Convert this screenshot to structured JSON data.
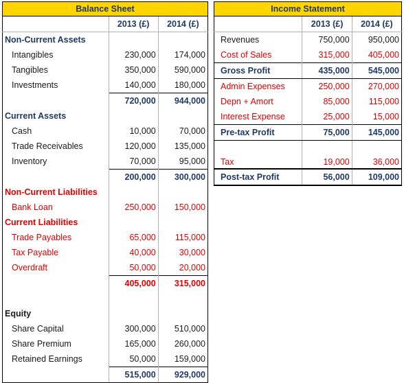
{
  "balance_sheet": {
    "title": "Balance Sheet",
    "years": [
      "2013 (£)",
      "2014 (£)"
    ],
    "rows": [
      {
        "label": "Non-Current Assets",
        "type": "header",
        "v1": "",
        "v2": ""
      },
      {
        "label": "Intangibles",
        "type": "item",
        "v1": "230,000",
        "v2": "174,000"
      },
      {
        "label": "Tangibles",
        "type": "item",
        "v1": "350,000",
        "v2": "590,000"
      },
      {
        "label": "Investments",
        "type": "item",
        "v1": "140,000",
        "v2": "180,000"
      },
      {
        "label": "",
        "type": "total",
        "v1": "720,000",
        "v2": "944,000"
      },
      {
        "label": "Current Assets",
        "type": "header",
        "v1": "",
        "v2": ""
      },
      {
        "label": "Cash",
        "type": "item",
        "v1": "10,000",
        "v2": "70,000"
      },
      {
        "label": "Trade Receivables",
        "type": "item",
        "v1": "120,000",
        "v2": "135,000"
      },
      {
        "label": "Inventory",
        "type": "item",
        "v1": "70,000",
        "v2": "95,000"
      },
      {
        "label": "",
        "type": "total",
        "v1": "200,000",
        "v2": "300,000"
      },
      {
        "label": "Non-Current Liabilities",
        "type": "header-red",
        "v1": "",
        "v2": ""
      },
      {
        "label": "Bank Loan",
        "type": "item-red",
        "v1": "250,000",
        "v2": "150,000"
      },
      {
        "label": "Current Liabilities",
        "type": "header-red",
        "v1": "",
        "v2": ""
      },
      {
        "label": "Trade Payables",
        "type": "item-red",
        "v1": "65,000",
        "v2": "115,000"
      },
      {
        "label": "Tax Payable",
        "type": "item-red",
        "v1": "40,000",
        "v2": "30,000"
      },
      {
        "label": "Overdraft",
        "type": "item-red",
        "v1": "50,000",
        "v2": "20,000"
      },
      {
        "label": "",
        "type": "total-red",
        "v1": "405,000",
        "v2": "315,000"
      },
      {
        "label": "",
        "type": "blank",
        "v1": "",
        "v2": ""
      },
      {
        "label": "Equity",
        "type": "header-black",
        "v1": "",
        "v2": ""
      },
      {
        "label": "Share Capital",
        "type": "item",
        "v1": "300,000",
        "v2": "510,000"
      },
      {
        "label": "Share Premium",
        "type": "item",
        "v1": "165,000",
        "v2": "260,000"
      },
      {
        "label": "Retained Earnings",
        "type": "item",
        "v1": "50,000",
        "v2": "159,000"
      },
      {
        "label": "",
        "type": "total",
        "v1": "515,000",
        "v2": "929,000"
      }
    ]
  },
  "income_statement": {
    "title": "Income Statement",
    "years": [
      "2013 (£)",
      "2014 (£)"
    ],
    "rows": [
      {
        "label": "Revenues",
        "type": "item",
        "v1": "750,000",
        "v2": "950,000"
      },
      {
        "label": "Cost of Sales",
        "type": "item-red",
        "v1": "315,000",
        "v2": "405,000"
      },
      {
        "label": "Gross Profit",
        "type": "subtotal",
        "v1": "435,000",
        "v2": "545,000"
      },
      {
        "label": "Admin Expenses",
        "type": "item-red",
        "v1": "250,000",
        "v2": "270,000"
      },
      {
        "label": "Depn + Amort",
        "type": "item-red",
        "v1": "85,000",
        "v2": "115,000"
      },
      {
        "label": "Interest Expense",
        "type": "item-red",
        "v1": "25,000",
        "v2": "15,000"
      },
      {
        "label": "Pre-tax Profit",
        "type": "subtotal",
        "v1": "75,000",
        "v2": "145,000"
      },
      {
        "label": "",
        "type": "blank",
        "v1": "",
        "v2": ""
      },
      {
        "label": "Tax",
        "type": "item-red-tall",
        "v1": "19,000",
        "v2": "36,000"
      },
      {
        "label": "Post-tax Profit",
        "type": "final",
        "v1": "56,000",
        "v2": "109,000"
      }
    ]
  }
}
